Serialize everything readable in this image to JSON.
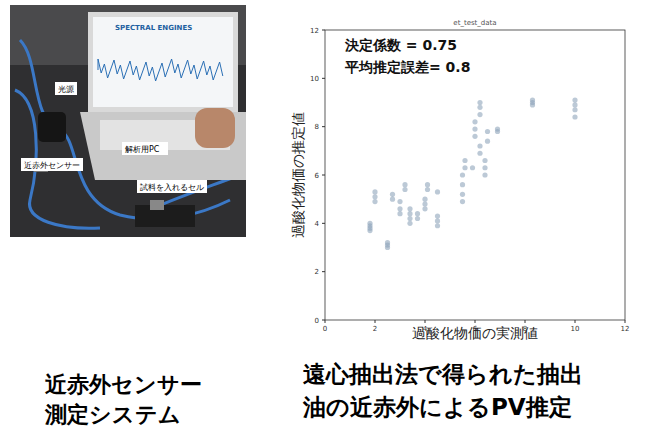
{
  "chart_data": {
    "type": "scatter",
    "title": "et_test_data",
    "x_label": "過酸化物価の実測値",
    "y_label": "過酸化物価の推定値",
    "annotations": [
      "決定係数 = 0.75",
      "平均推定誤差= 0.8"
    ],
    "x": [
      1.8,
      1.8,
      1.8,
      1.8,
      2.0,
      2.0,
      2.0,
      2.5,
      2.5,
      2.5,
      2.7,
      2.7,
      3.0,
      3.0,
      3.0,
      3.2,
      3.2,
      3.4,
      3.4,
      3.4,
      3.4,
      3.7,
      3.7,
      4.0,
      4.0,
      4.0,
      4.1,
      4.1,
      4.5,
      4.5,
      4.5,
      4.5,
      5.5,
      5.5,
      5.5,
      5.5,
      5.6,
      5.6,
      5.9,
      6.0,
      6.0,
      6.0,
      6.2,
      6.2,
      6.2,
      6.2,
      6.2,
      6.4,
      6.4,
      6.4,
      6.5,
      6.5,
      6.9,
      6.9,
      8.3,
      8.3,
      8.3,
      10.0,
      10.0,
      10.0,
      10.0
    ],
    "values": [
      3.7,
      3.8,
      3.9,
      4.0,
      4.9,
      5.1,
      5.3,
      3.0,
      3.1,
      3.2,
      5.0,
      5.2,
      4.4,
      4.6,
      4.9,
      5.4,
      5.6,
      4.0,
      4.2,
      4.4,
      4.6,
      4.2,
      4.4,
      4.6,
      4.8,
      5.0,
      5.4,
      5.6,
      3.9,
      4.1,
      4.3,
      5.3,
      4.9,
      5.2,
      5.6,
      6.0,
      6.3,
      6.6,
      6.3,
      7.6,
      7.9,
      8.2,
      8.5,
      8.8,
      9.0,
      6.9,
      7.2,
      6.0,
      6.3,
      6.6,
      7.4,
      7.8,
      7.8,
      7.9,
      8.9,
      9.0,
      9.1,
      8.4,
      8.7,
      8.9,
      9.1
    ],
    "color": "#8fa5ba",
    "marker": "circle",
    "xlim": [
      0,
      12
    ],
    "ylim": [
      0,
      12
    ],
    "xticks": [
      0,
      2,
      4,
      6,
      8,
      10,
      12
    ],
    "yticks": [
      0,
      2,
      4,
      6,
      8,
      10,
      12
    ],
    "grid": false
  },
  "photo": {
    "screen_text": "SPECTRAL ENGINES",
    "labels": [
      "光源",
      "近赤外センサー",
      "解析用PC",
      "試料を入れるセル"
    ]
  },
  "captions": [
    [
      "近赤外センサー",
      "測定システム"
    ],
    [
      "遠心抽出法で得られた抽出",
      "油の近赤外によるPV推定"
    ]
  ]
}
